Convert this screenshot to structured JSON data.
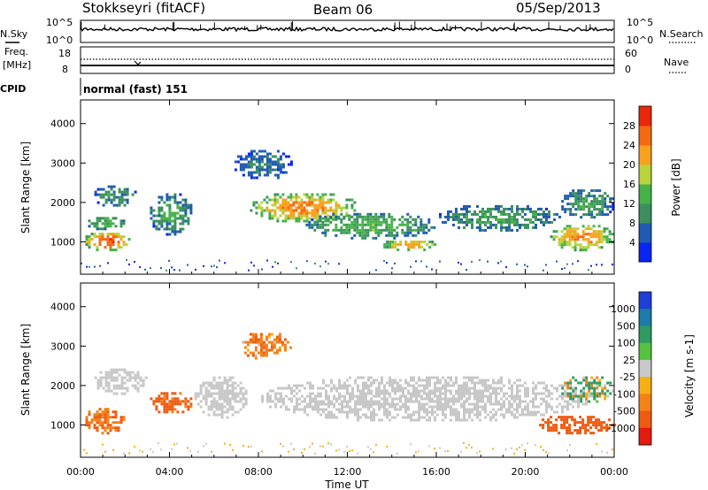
{
  "header": {
    "station": "Stokkseyri (fitACF)",
    "beam": "Beam 06",
    "date": "05/Sep/2013"
  },
  "top_panels": {
    "nsky_label": "N.Sky",
    "nsky_ticks": [
      "10^5",
      "10^0"
    ],
    "nsearch_label": "N.Search",
    "nsearch_ticks": [
      "10^5",
      "10^0"
    ],
    "freq_label": "Freq.",
    "freq_unit": "[MHz]",
    "freq_ticks": [
      "18",
      "8"
    ],
    "nave_label": "Nave",
    "nave_ticks": [
      "60",
      "0"
    ],
    "cpid_label": "CPID",
    "cpid_value": "normal (fast) 151"
  },
  "colors": {
    "power": [
      "#0a24f2",
      "#1f5bb0",
      "#3b8f5e",
      "#46b24a",
      "#b9d33c",
      "#f7a21c",
      "#f36a12",
      "#e8280c"
    ],
    "velocity": [
      "#1d3fd6",
      "#1e7aa8",
      "#2f9a62",
      "#57c140",
      "#c8c8c8",
      "#f7b014",
      "#f38218",
      "#ee5a12",
      "#e41a10"
    ]
  },
  "chart_data": [
    {
      "type": "heatmap",
      "name": "power",
      "xlabel": "Time UT",
      "ylabel": "Slant Range [km]",
      "x_ticks": [
        "00:00",
        "04:00",
        "08:00",
        "12:00",
        "16:00",
        "20:00",
        "00:00"
      ],
      "xlim_hours": [
        0,
        24
      ],
      "y_ticks": [
        1000,
        2000,
        3000,
        4000
      ],
      "ylim_km": [
        180,
        4600
      ],
      "colorbar": {
        "label": "Power [dB]",
        "ticks": [
          4,
          8,
          12,
          16,
          20,
          24,
          28
        ],
        "range": [
          0,
          32
        ]
      },
      "echo_regions": [
        {
          "t": [
            0.1,
            2.2
          ],
          "r": [
            800,
            1300
          ],
          "level": 28
        },
        {
          "t": [
            0.1,
            2.0
          ],
          "r": [
            1350,
            1700
          ],
          "level": 14
        },
        {
          "t": [
            0.5,
            2.5
          ],
          "r": [
            1900,
            2500
          ],
          "level": 10
        },
        {
          "t": [
            3.0,
            5.0
          ],
          "r": [
            1200,
            2300
          ],
          "level": 12
        },
        {
          "t": [
            6.8,
            9.5
          ],
          "r": [
            2600,
            3400
          ],
          "level": 8
        },
        {
          "t": [
            7.5,
            12.5
          ],
          "r": [
            1500,
            2300
          ],
          "level": 24
        },
        {
          "t": [
            10.0,
            16.0
          ],
          "r": [
            1100,
            1800
          ],
          "level": 14
        },
        {
          "t": [
            13.5,
            16.0
          ],
          "r": [
            800,
            1100
          ],
          "level": 24
        },
        {
          "t": [
            16.0,
            21.5
          ],
          "r": [
            1300,
            2000
          ],
          "level": 12
        },
        {
          "t": [
            21.0,
            24.0
          ],
          "r": [
            800,
            1500
          ],
          "level": 24
        },
        {
          "t": [
            21.5,
            24.0
          ],
          "r": [
            1600,
            2400
          ],
          "level": 12
        }
      ]
    },
    {
      "type": "heatmap",
      "name": "velocity",
      "xlabel": "Time UT",
      "ylabel": "Slant Range [km]",
      "x_ticks": [
        "00:00",
        "04:00",
        "08:00",
        "12:00",
        "16:00",
        "20:00",
        "00:00"
      ],
      "xlim_hours": [
        0,
        24
      ],
      "y_ticks": [
        1000,
        2000,
        3000,
        4000
      ],
      "ylim_km": [
        180,
        4600
      ],
      "colorbar": {
        "label": "Velocity [m s-1]",
        "ticks": [
          1000,
          500,
          100,
          25,
          -25,
          -100,
          -500,
          -1000
        ]
      },
      "echo_regions": [
        {
          "t": [
            0.5,
            3.0
          ],
          "r": [
            1800,
            2500
          ],
          "velocity": 0
        },
        {
          "t": [
            0.1,
            2.0
          ],
          "r": [
            800,
            1500
          ],
          "velocity": -300
        },
        {
          "t": [
            3.0,
            5.0
          ],
          "r": [
            1300,
            1900
          ],
          "velocity": -400
        },
        {
          "t": [
            5.0,
            7.5
          ],
          "r": [
            1200,
            2300
          ],
          "velocity": 0
        },
        {
          "t": [
            7.0,
            9.5
          ],
          "r": [
            2700,
            3400
          ],
          "velocity": -200
        },
        {
          "t": [
            8.0,
            23.0
          ],
          "r": [
            1100,
            2300
          ],
          "velocity": 0
        },
        {
          "t": [
            20.5,
            24.0
          ],
          "r": [
            800,
            1300
          ],
          "velocity": -500
        },
        {
          "t": [
            21.5,
            24.0
          ],
          "r": [
            1600,
            2300
          ],
          "velocity": 50
        }
      ]
    }
  ]
}
